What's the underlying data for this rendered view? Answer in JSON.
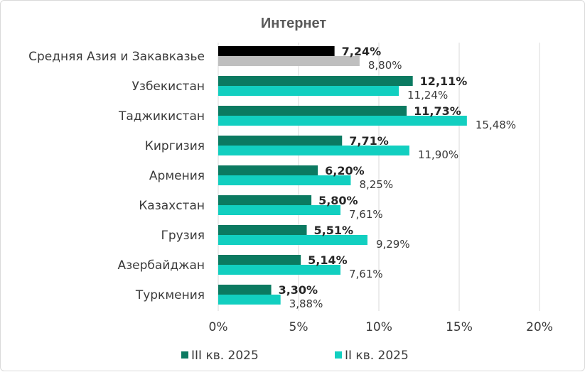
{
  "chart_data": {
    "type": "bar",
    "orientation": "horizontal",
    "title": "Интернет",
    "categories": [
      "Средняя Азия и Закавказье",
      "Узбекистан",
      "Таджикистан",
      "Киргизия",
      "Армения",
      "Казахстан",
      "Грузия",
      "Азербайджан",
      "Туркмения"
    ],
    "series": [
      {
        "name": "III кв. 2025",
        "color": "#0b7a61",
        "highlight_color": "#000000",
        "values": [
          7.24,
          12.11,
          11.73,
          7.71,
          6.2,
          5.8,
          5.51,
          5.14,
          3.3
        ],
        "labels": [
          "7,24%",
          "12,11%",
          "11,73%",
          "7,71%",
          "6,20%",
          "5,80%",
          "5,51%",
          "5,14%",
          "3,30%"
        ]
      },
      {
        "name": "II кв. 2025",
        "color": "#12cfc0",
        "highlight_color": "#bfbfbf",
        "values": [
          8.8,
          11.24,
          15.48,
          11.9,
          8.25,
          7.61,
          9.29,
          7.61,
          3.88
        ],
        "labels": [
          "8,80%",
          "11,24%",
          "15,48%",
          "11,90%",
          "8,25%",
          "7,61%",
          "9,29%",
          "7,61%",
          "3,88%"
        ]
      }
    ],
    "xlim": [
      0,
      20
    ],
    "xticks": [
      0,
      5,
      10,
      15,
      20
    ],
    "xtick_labels": [
      "0%",
      "5%",
      "10%",
      "15%",
      "20%"
    ],
    "grid": "vertical",
    "legend": "bottom"
  }
}
